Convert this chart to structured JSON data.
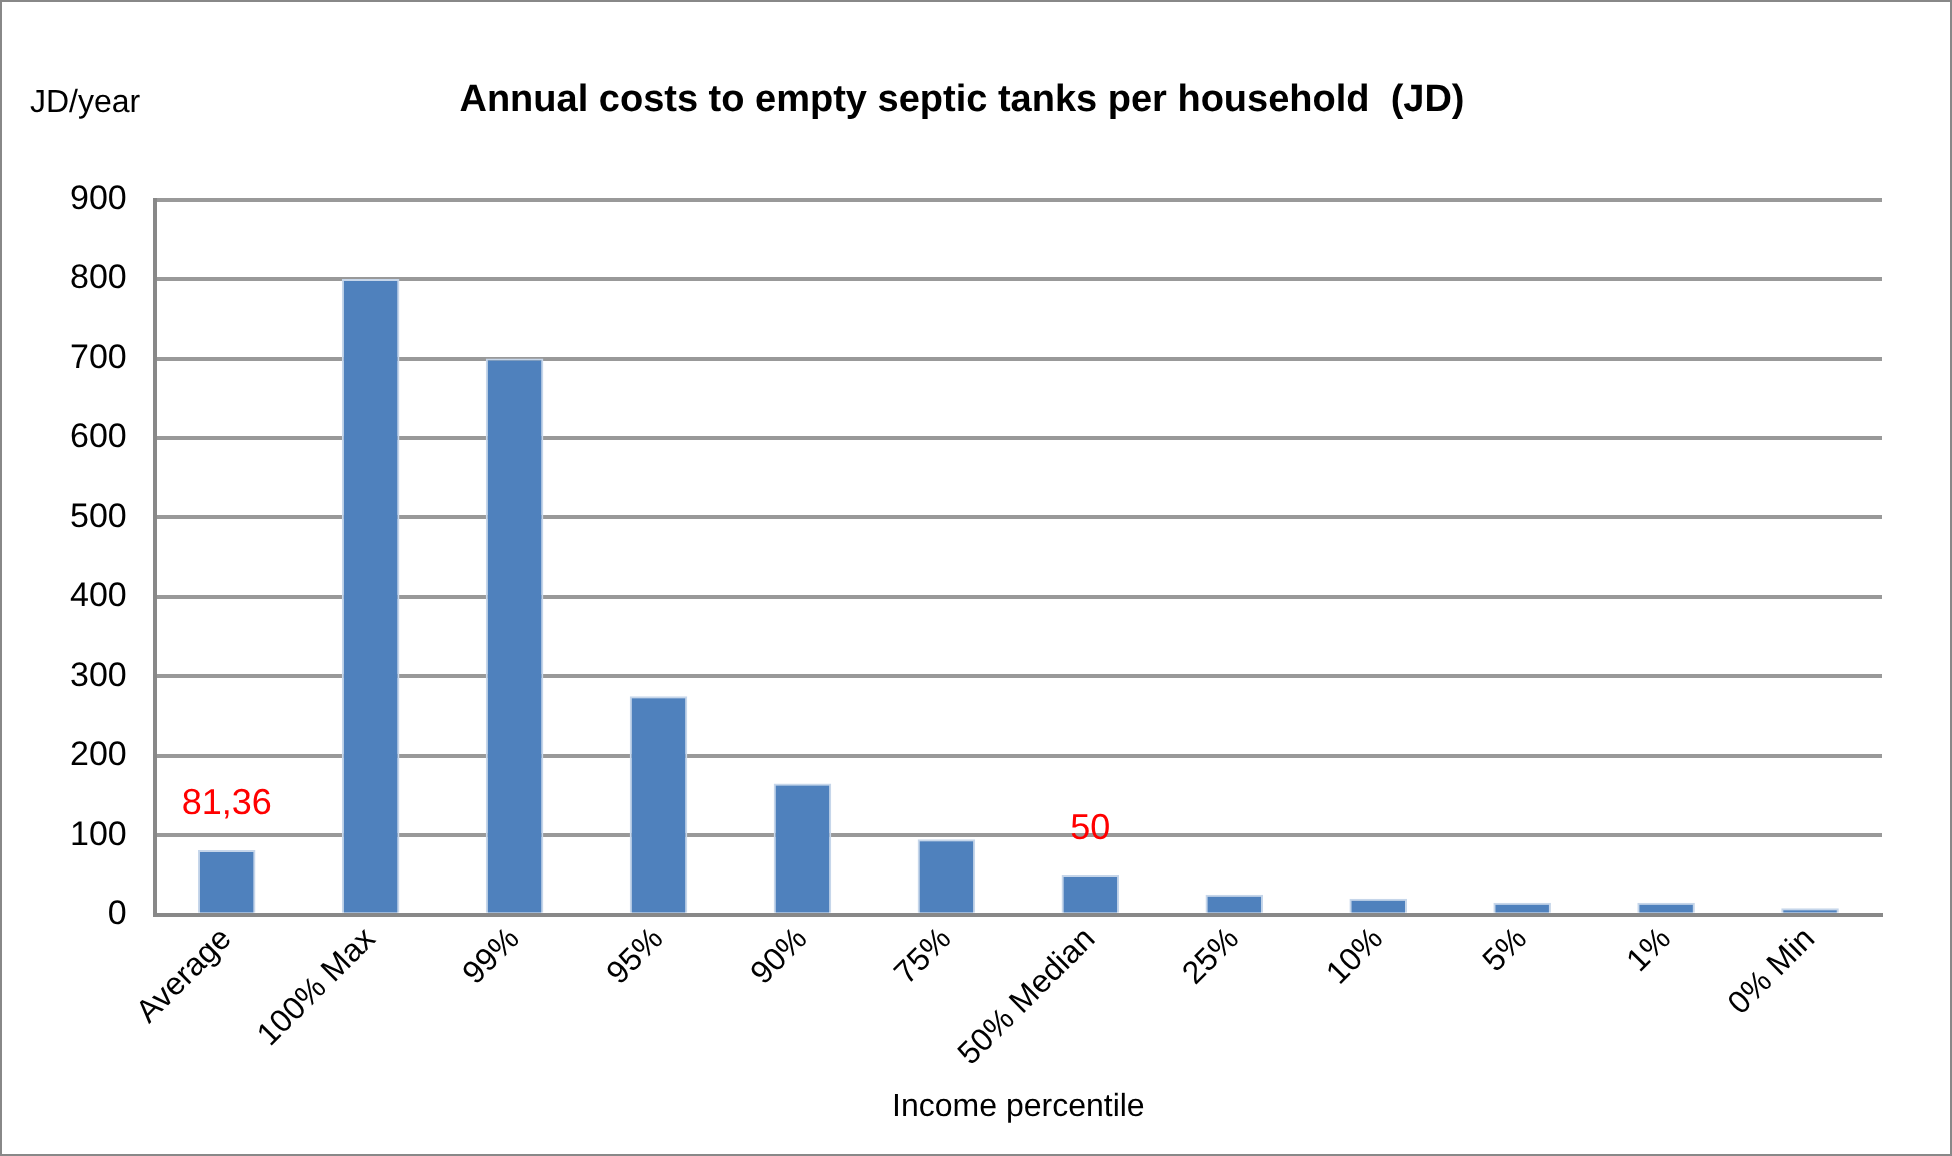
{
  "chart_data": {
    "type": "bar",
    "title": "Annual costs to empty septic tanks per household  (JD)",
    "xlabel": "Income percentile",
    "ylabel": "JD/year",
    "categories": [
      "Average",
      "100% Max",
      "99%",
      "95%",
      "90%",
      "75%",
      "50% Median",
      "25%",
      "10%",
      "5%",
      "1%",
      "0% Min"
    ],
    "values": [
      81.36,
      800,
      700,
      275,
      165,
      95,
      50,
      25,
      20,
      15,
      15,
      8
    ],
    "value_labels": [
      "81,36",
      null,
      null,
      null,
      null,
      null,
      "50",
      null,
      null,
      null,
      null,
      null
    ],
    "color": "#4f81bd",
    "ylim": [
      0,
      900
    ],
    "yticks": [
      0,
      100,
      200,
      300,
      400,
      500,
      600,
      700,
      800,
      900
    ],
    "grid": "y",
    "legend": false
  }
}
